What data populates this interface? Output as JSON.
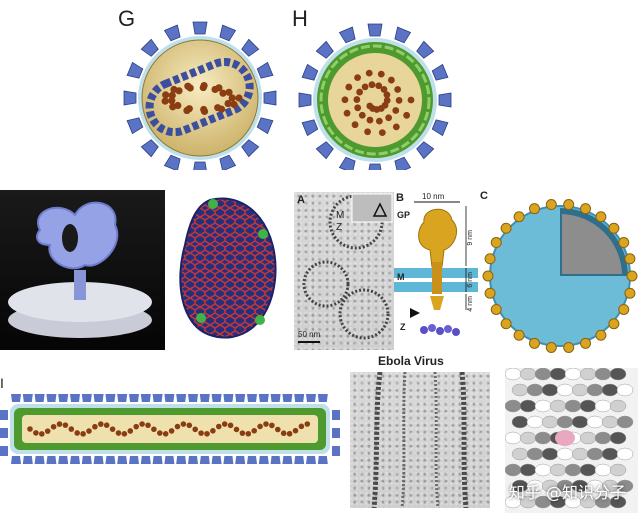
{
  "labels": {
    "panel_g": "G",
    "panel_h": "H",
    "panel_i": "I",
    "sub_a": "A",
    "sub_b": "B",
    "sub_c": "C",
    "gp": "GP",
    "m_upper": "M",
    "z_upper": "Z",
    "m_mid": "M",
    "z_lower": "Z",
    "scale_10nm": "10 nm",
    "scale_9nm": "9 nm",
    "scale_6nm": "6 nm",
    "scale_4nm": "4 nm",
    "scale_bar": "50 nm",
    "ebola_title": "Ebola Virus"
  },
  "watermark": "知乎 @知识分子",
  "colors": {
    "spike_blue": "#5a73c4",
    "envelope_tan": "#e8d59a",
    "matrix_green": "#4e9a2e",
    "rna_brown": "#8a3d12",
    "glycoprotein_gold": "#d9a520",
    "membrane_cyan": "#5fb6d6"
  }
}
